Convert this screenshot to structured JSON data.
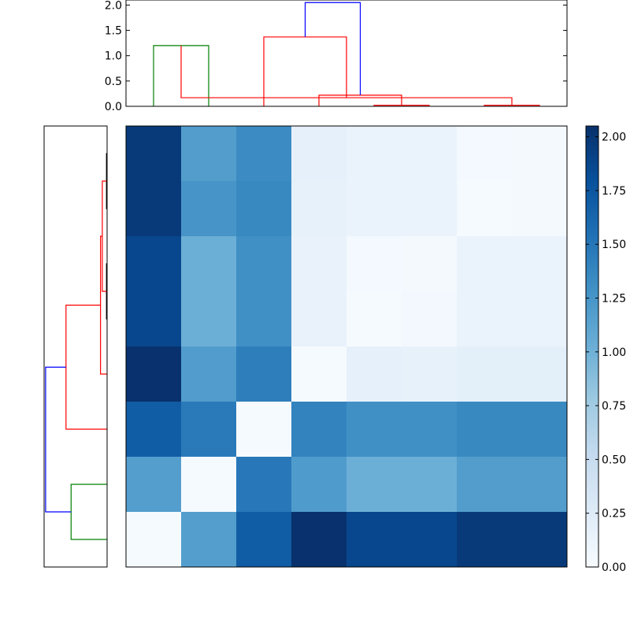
{
  "chart_data": {
    "type": "heatmap",
    "title": "",
    "matrix": [
      [
        1.97,
        1.18,
        1.33,
        0.17,
        0.13,
        0.13,
        0.04,
        0.03
      ],
      [
        1.97,
        1.25,
        1.35,
        0.16,
        0.13,
        0.13,
        0.02,
        0.03
      ],
      [
        1.87,
        1.02,
        1.3,
        0.14,
        0.04,
        0.03,
        0.13,
        0.13
      ],
      [
        1.87,
        1.02,
        1.3,
        0.14,
        0.02,
        0.05,
        0.13,
        0.13
      ],
      [
        2.04,
        1.19,
        1.44,
        0.02,
        0.17,
        0.16,
        0.2,
        0.2
      ],
      [
        1.7,
        1.47,
        0.02,
        1.4,
        1.3,
        1.3,
        1.35,
        1.35
      ],
      [
        1.17,
        0.02,
        1.48,
        1.2,
        1.02,
        1.02,
        1.18,
        1.18
      ],
      [
        0.02,
        1.17,
        1.7,
        2.04,
        1.87,
        1.87,
        1.97,
        1.97
      ]
    ],
    "colorbar": {
      "min": 0.0,
      "max": 2.05,
      "ticks": [
        "0.00",
        "0.25",
        "0.50",
        "0.75",
        "1.00",
        "1.25",
        "1.50",
        "1.75",
        "2.00"
      ],
      "colormap": "Blues"
    },
    "top_dendrogram": {
      "ylim": [
        0,
        2.1
      ],
      "yticks": [
        "0.0",
        "0.5",
        "1.0",
        "1.5",
        "2.0"
      ],
      "links": [
        {
          "left": 0,
          "right": 1,
          "height": 1.2,
          "color": "#008000"
        },
        {
          "left": 6,
          "right": 7,
          "height": 0.02,
          "color": "#ff0000"
        },
        {
          "left": 4,
          "right": 5,
          "height": 0.02,
          "color": "#ff0000"
        },
        {
          "left": 8,
          "right": 9,
          "height": 0.17,
          "color": "#ff0000"
        },
        {
          "left": 3,
          "right": 10,
          "height": 0.22,
          "color": "#ff0000"
        },
        {
          "left": 2,
          "right": 11,
          "height": 1.37,
          "color": "#ff0000"
        },
        {
          "left": 12,
          "right": 13,
          "height": 2.05,
          "color": "#0000ff"
        }
      ]
    },
    "left_dendrogram": {
      "xlim": [
        0,
        2.1
      ],
      "links": [
        {
          "top": 0,
          "bottom": 1,
          "depth": 0.02,
          "color": "#000000"
        },
        {
          "top": 2,
          "bottom": 3,
          "depth": 0.02,
          "color": "#000000"
        },
        {
          "top": 8,
          "bottom": 9,
          "depth": 0.16,
          "color": "#ff0000"
        },
        {
          "top": 10,
          "bottom": 4,
          "depth": 0.22,
          "color": "#ff0000"
        },
        {
          "top": 11,
          "bottom": 5,
          "depth": 1.37,
          "color": "#ff0000"
        },
        {
          "top": 6,
          "bottom": 7,
          "depth": 1.2,
          "color": "#008000"
        },
        {
          "top": 12,
          "bottom": 13,
          "depth": 2.05,
          "color": "#0000ff"
        }
      ]
    }
  }
}
